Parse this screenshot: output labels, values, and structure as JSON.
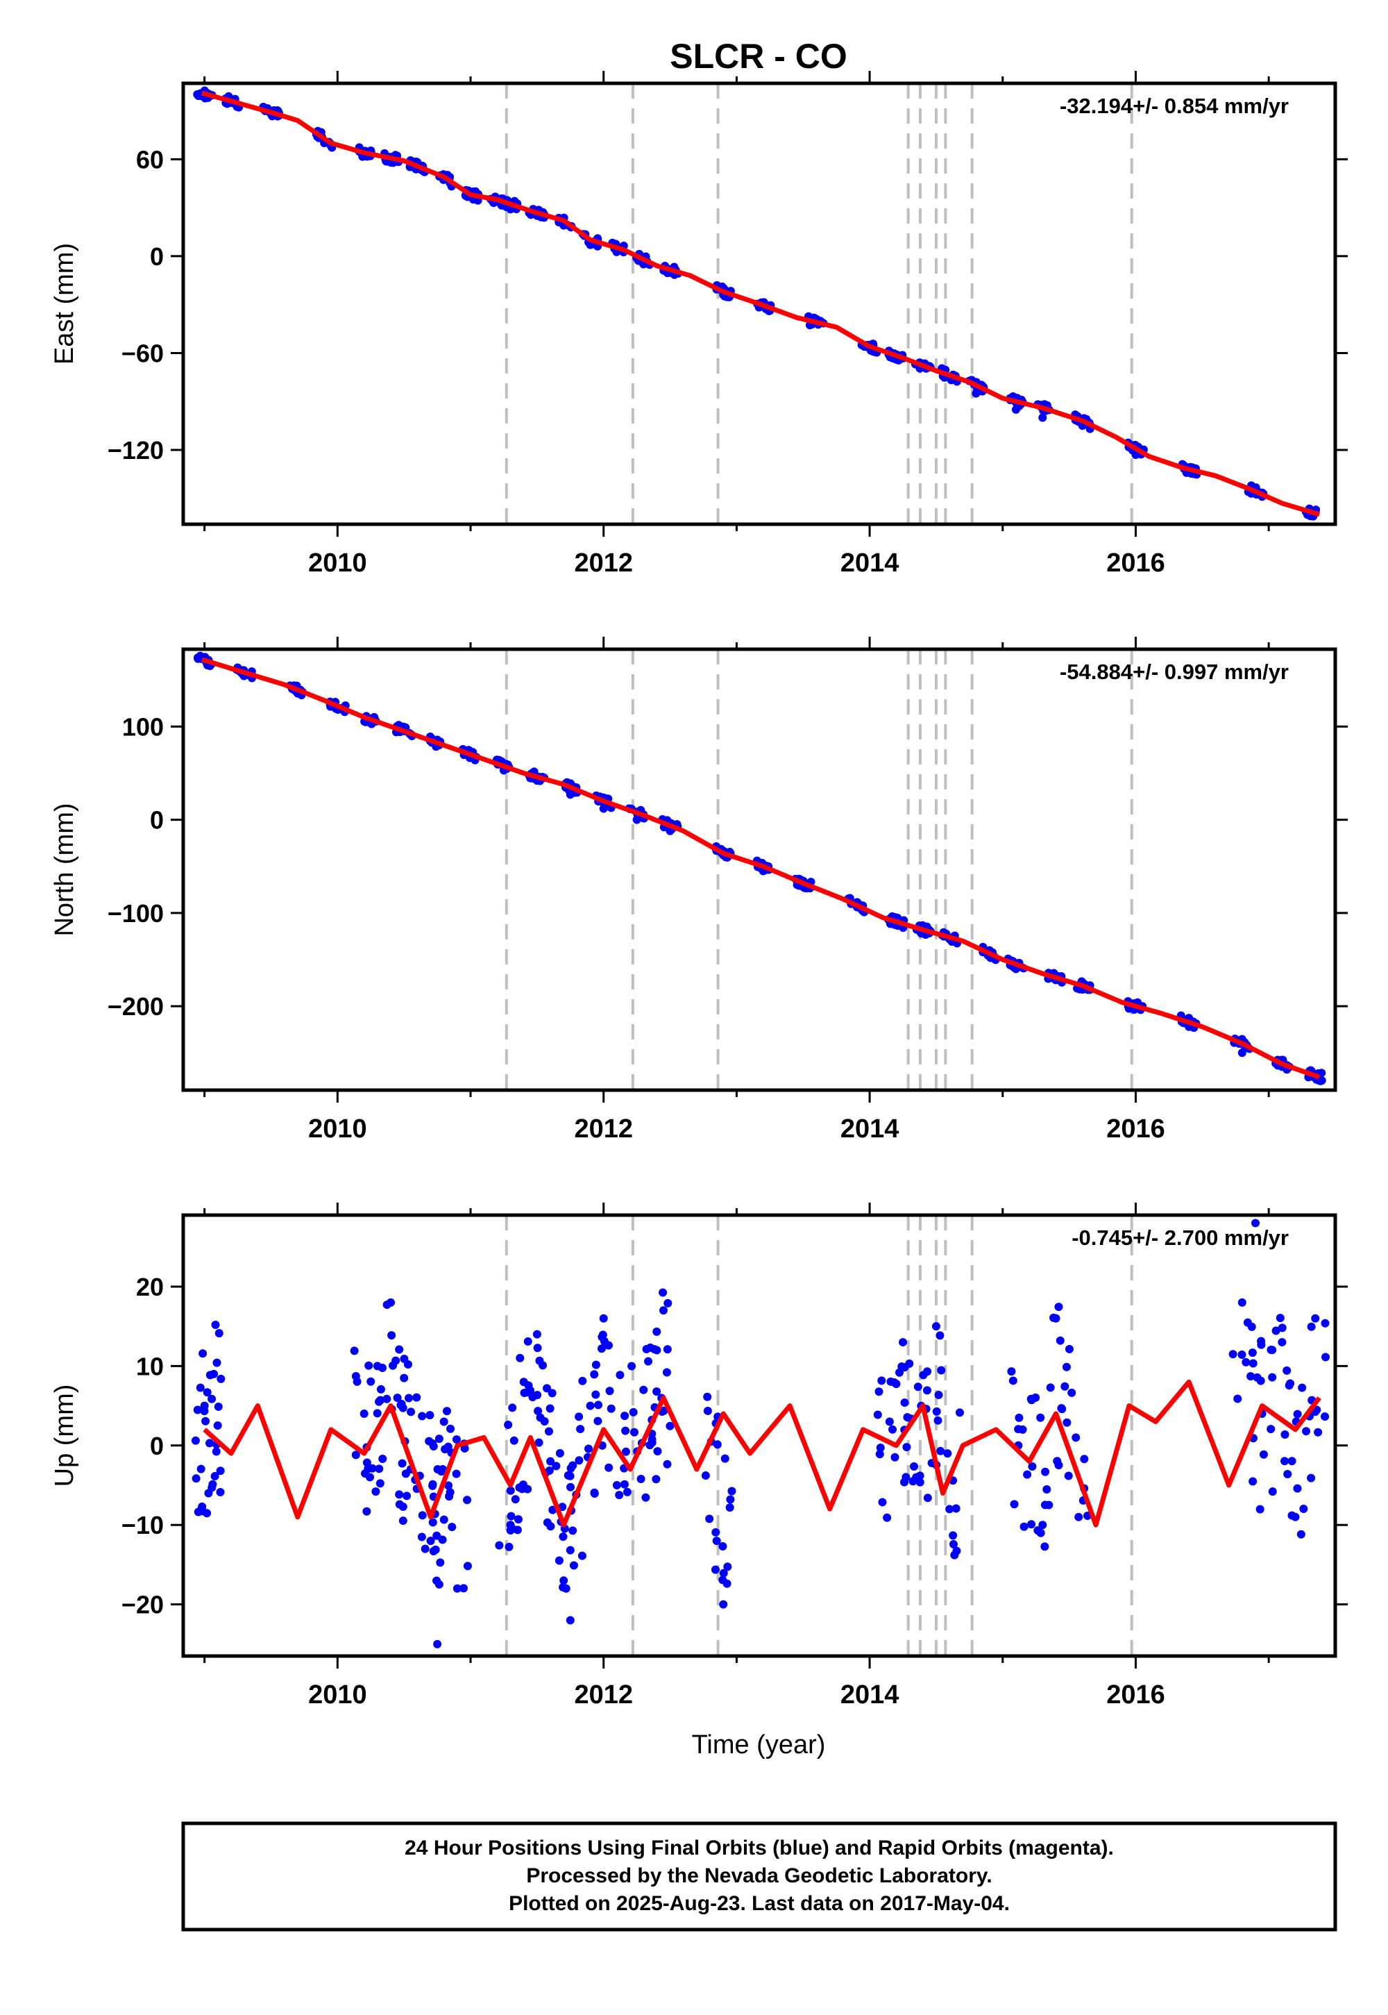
{
  "title": "SLCR - CO",
  "xlabel": "Time (year)",
  "footer": [
    "24 Hour Positions Using Final Orbits (blue) and Rapid Orbits (magenta).",
    "Processed by the Nevada Geodetic Laboratory.",
    "Plotted on 2025-Aug-23. Last data on 2017-May-04."
  ],
  "colors": {
    "data": "#0000ff",
    "model": "#ff0000",
    "steps": "#bfbfbf"
  },
  "chart_data": [
    {
      "type": "scatter",
      "panel": "East",
      "ylabel": "East (mm)",
      "rate": "-32.194+/- 0.854 mm/yr",
      "xlim": [
        2008.84,
        2017.5
      ],
      "ylim": [
        -166,
        107
      ],
      "xticks": [
        2010,
        2012,
        2014,
        2016
      ],
      "yticks": [
        60,
        0,
        -60,
        -120
      ],
      "ytick_labels": [
        "60",
        "0",
        "−60",
        "−120"
      ],
      "x": [
        2009.0,
        2009.2,
        2009.5,
        2009.9,
        2010.2,
        2010.4,
        2010.6,
        2010.8,
        2011.0,
        2011.2,
        2011.3,
        2011.5,
        2011.7,
        2011.9,
        2012.1,
        2012.3,
        2012.5,
        2012.9,
        2013.2,
        2013.6,
        2014.0,
        2014.2,
        2014.4,
        2014.6,
        2014.8,
        2015.1,
        2015.3,
        2015.6,
        2016.0,
        2016.4,
        2016.9,
        2017.3
      ],
      "y": [
        101,
        95,
        88,
        70,
        64,
        58,
        56,
        50,
        37,
        34,
        29,
        25,
        19,
        7,
        3,
        -5,
        -10,
        -24,
        -30,
        -39,
        -55,
        -64,
        -68,
        -75,
        -85,
        -95,
        -100,
        -105,
        -123,
        -132,
        -145,
        -160
      ],
      "model_x": [
        2008.98,
        2009.2,
        2009.5,
        2009.7,
        2009.95,
        2010.2,
        2010.5,
        2010.8,
        2011.0,
        2011.2,
        2011.45,
        2011.7,
        2011.9,
        2012.15,
        2012.4,
        2012.65,
        2012.9,
        2013.15,
        2013.45,
        2013.75,
        2014.0,
        2014.25,
        2014.5,
        2014.75,
        2015.0,
        2015.3,
        2015.6,
        2015.85,
        2016.1,
        2016.35,
        2016.6,
        2016.85,
        2017.1,
        2017.38
      ],
      "model_y": [
        101,
        96,
        89,
        84,
        70,
        64,
        59,
        49,
        38,
        35,
        28,
        22,
        10,
        4,
        -6,
        -12,
        -22,
        -29,
        -38,
        -44,
        -56,
        -63,
        -71,
        -78,
        -88,
        -94,
        -102,
        -112,
        -124,
        -131,
        -136,
        -144,
        -153,
        -160
      ],
      "steps": [
        2011.27,
        2012.22,
        2012.86,
        2014.29,
        2014.38,
        2014.5,
        2014.57,
        2014.77,
        2015.97
      ]
    },
    {
      "type": "scatter",
      "panel": "North",
      "ylabel": "North (mm)",
      "rate": "-54.884+/- 0.997 mm/yr",
      "xlim": [
        2008.84,
        2017.5
      ],
      "ylim": [
        -290,
        183
      ],
      "xticks": [
        2010,
        2012,
        2014,
        2016
      ],
      "yticks": [
        100,
        0,
        -100,
        -200
      ],
      "ytick_labels": [
        "100",
        "0",
        "−100",
        "−200"
      ],
      "x": [
        2009.0,
        2009.3,
        2009.7,
        2010.0,
        2010.25,
        2010.5,
        2010.75,
        2011.0,
        2011.25,
        2011.5,
        2011.75,
        2012.0,
        2012.25,
        2012.5,
        2012.9,
        2013.2,
        2013.5,
        2013.9,
        2014.2,
        2014.4,
        2014.6,
        2014.9,
        2015.1,
        2015.4,
        2015.6,
        2016.0,
        2016.4,
        2016.8,
        2017.1,
        2017.35
      ],
      "y": [
        172,
        158,
        138,
        120,
        105,
        97,
        83,
        68,
        53,
        42,
        27,
        12,
        0,
        -12,
        -38,
        -55,
        -72,
        -92,
        -105,
        -118,
        -128,
        -140,
        -160,
        -170,
        -178,
        -200,
        -222,
        -250,
        -265,
        -277
      ],
      "model_x": [
        2008.98,
        2009.3,
        2009.6,
        2009.9,
        2010.2,
        2010.5,
        2010.8,
        2011.1,
        2011.4,
        2011.7,
        2012.0,
        2012.3,
        2012.6,
        2012.9,
        2013.2,
        2013.5,
        2013.8,
        2014.1,
        2014.4,
        2014.7,
        2015.0,
        2015.3,
        2015.6,
        2015.9,
        2016.2,
        2016.5,
        2016.8,
        2017.1,
        2017.38
      ],
      "model_y": [
        172,
        158,
        145,
        128,
        110,
        95,
        80,
        65,
        50,
        38,
        20,
        5,
        -12,
        -36,
        -50,
        -68,
        -85,
        -105,
        -118,
        -130,
        -150,
        -165,
        -178,
        -196,
        -208,
        -222,
        -240,
        -262,
        -276
      ],
      "steps": [
        2011.27,
        2012.22,
        2012.86,
        2014.29,
        2014.38,
        2014.5,
        2014.57,
        2014.77,
        2015.97
      ]
    },
    {
      "type": "scatter",
      "panel": "Up",
      "ylabel": "Up (mm)",
      "rate": "-0.745+/- 2.700 mm/yr",
      "xlim": [
        2008.84,
        2017.5
      ],
      "ylim": [
        -26.5,
        29
      ],
      "xticks": [
        2010,
        2012,
        2014,
        2016
      ],
      "yticks": [
        20,
        10,
        0,
        -10,
        -20
      ],
      "ytick_labels": [
        "20",
        "10",
        "0",
        "−10",
        "−20"
      ],
      "x": [
        2009.0,
        2009.03,
        2009.07,
        2010.2,
        2010.3,
        2010.4,
        2010.45,
        2010.55,
        2010.7,
        2010.75,
        2010.8,
        2010.9,
        2011.3,
        2011.4,
        2011.5,
        2011.6,
        2011.7,
        2011.75,
        2011.9,
        2012.0,
        2012.1,
        2012.3,
        2012.4,
        2012.45,
        2012.85,
        2012.9,
        2014.15,
        2014.25,
        2014.35,
        2014.5,
        2014.6,
        2015.15,
        2015.3,
        2015.4,
        2015.55,
        2016.8,
        2016.95,
        2017.1,
        2017.2,
        2017.35
      ],
      "y": [
        5,
        -6,
        9,
        4,
        10,
        18,
        6,
        -3,
        -12,
        -25,
        3,
        -18,
        -10,
        8,
        14,
        -2,
        -17,
        -22,
        5,
        16,
        -5,
        7,
        12,
        17,
        -12,
        -20,
        3,
        13,
        -4,
        15,
        -8,
        2,
        -10,
        16,
        1,
        18,
        4,
        13,
        -9,
        16
      ],
      "extra_points": [
        {
          "x": 2016.9,
          "y": 28
        }
      ],
      "model_x": [
        2009.0,
        2009.2,
        2009.4,
        2009.7,
        2009.95,
        2010.2,
        2010.4,
        2010.7,
        2010.9,
        2011.1,
        2011.3,
        2011.45,
        2011.7,
        2012.0,
        2012.2,
        2012.45,
        2012.7,
        2012.9,
        2013.1,
        2013.4,
        2013.7,
        2013.95,
        2014.2,
        2014.4,
        2014.55,
        2014.7,
        2014.95,
        2015.2,
        2015.4,
        2015.7,
        2015.95,
        2016.15,
        2016.4,
        2016.7,
        2016.95,
        2017.2,
        2017.38
      ],
      "model_y": [
        2,
        -1,
        5,
        -9,
        2,
        -1,
        5,
        -9,
        0,
        1,
        -5,
        1,
        -10,
        2,
        -3,
        6,
        -3,
        4,
        -1,
        5,
        -8,
        2,
        0,
        5,
        -6,
        0,
        2,
        -2,
        4,
        -10,
        5,
        3,
        8,
        -5,
        5,
        2,
        6
      ],
      "steps": [
        2011.27,
        2012.22,
        2012.86,
        2014.29,
        2014.38,
        2014.5,
        2014.57,
        2014.77,
        2015.97
      ]
    }
  ]
}
